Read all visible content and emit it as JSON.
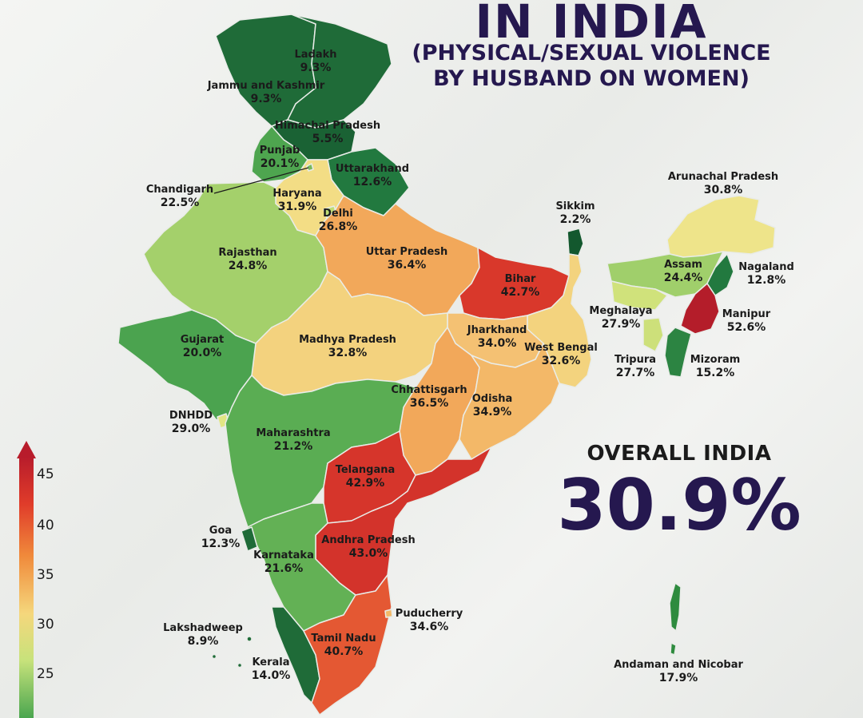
{
  "title": {
    "main": "IN INDIA",
    "sub_line1": "(PHYSICAL/SEXUAL VIOLENCE",
    "sub_line2": "BY HUSBAND ON WOMEN)"
  },
  "overall": {
    "label": "OVERALL INDIA",
    "value": "30.9%"
  },
  "legend": {
    "ticks": [
      "45",
      "40",
      "35",
      "30",
      "25"
    ],
    "min_color": "#2e8b3e",
    "max_color": "#b81c2b"
  },
  "regions": {
    "ladakh": {
      "name": "Ladakh",
      "value": "9.3%",
      "color": "#1f6b38"
    },
    "jk": {
      "name": "Jammu and Kashmir",
      "value": "9.3%",
      "color": "#1f6b38"
    },
    "hp": {
      "name": "Himachal Pradesh",
      "value": "5.5%",
      "color": "#1a6234"
    },
    "punjab": {
      "name": "Punjab",
      "value": "20.1%",
      "color": "#4ea54f"
    },
    "uttarakhand": {
      "name": "Uttarakhand",
      "value": "12.6%",
      "color": "#22793f"
    },
    "chandigarh": {
      "name": "Chandigarh",
      "value": "22.5%",
      "color": "#79b85a"
    },
    "haryana": {
      "name": "Haryana",
      "value": "31.9%",
      "color": "#f3dd85"
    },
    "delhi": {
      "name": "Delhi",
      "value": "26.8%",
      "color": "#bfdc74"
    },
    "rajasthan": {
      "name": "Rajasthan",
      "value": "24.8%",
      "color": "#a4d06b"
    },
    "up": {
      "name": "Uttar Pradesh",
      "value": "36.4%",
      "color": "#f2a85a"
    },
    "bihar": {
      "name": "Bihar",
      "value": "42.7%",
      "color": "#d9382b"
    },
    "sikkim": {
      "name": "Sikkim",
      "value": "2.2%",
      "color": "#13582e"
    },
    "arunachal": {
      "name": "Arunachal Pradesh",
      "value": "30.8%",
      "color": "#eee48a"
    },
    "nagaland": {
      "name": "Nagaland",
      "value": "12.8%",
      "color": "#22793f"
    },
    "assam": {
      "name": "Assam",
      "value": "24.4%",
      "color": "#a0cf6b"
    },
    "manipur": {
      "name": "Manipur",
      "value": "52.6%",
      "color": "#b41d2a"
    },
    "meghalaya": {
      "name": "Meghalaya",
      "value": "27.9%",
      "color": "#d0e27b"
    },
    "tripura": {
      "name": "Tripura",
      "value": "27.7%",
      "color": "#cde07a"
    },
    "mizoram": {
      "name": "Mizoram",
      "value": "15.2%",
      "color": "#2c8442"
    },
    "gujarat": {
      "name": "Gujarat",
      "value": "20.0%",
      "color": "#4ba34f"
    },
    "mp": {
      "name": "Madhya Pradesh",
      "value": "32.8%",
      "color": "#f3d27e"
    },
    "jharkhand": {
      "name": "Jharkhand",
      "value": "34.0%",
      "color": "#f4c173"
    },
    "wb": {
      "name": "West Bengal",
      "value": "32.6%",
      "color": "#f3d37e"
    },
    "chhattisgarh": {
      "name": "Chhattisgarh",
      "value": "36.5%",
      "color": "#f2a85a"
    },
    "odisha": {
      "name": "Odisha",
      "value": "34.9%",
      "color": "#f3b868"
    },
    "dnhdd": {
      "name": "DNHDD",
      "value": "29.0%",
      "color": "#e2e684"
    },
    "maharashtra": {
      "name": "Maharashtra",
      "value": "21.2%",
      "color": "#5aad53"
    },
    "telangana": {
      "name": "Telangana",
      "value": "42.9%",
      "color": "#d6352b"
    },
    "goa": {
      "name": "Goa",
      "value": "12.3%",
      "color": "#1f6b38"
    },
    "ap": {
      "name": "Andhra Pradesh",
      "value": "43.0%",
      "color": "#d3332b"
    },
    "karnataka": {
      "name": "Karnataka",
      "value": "21.6%",
      "color": "#63b155"
    },
    "lakshadweep": {
      "name": "Lakshadweep",
      "value": "8.9%",
      "color": "#1f6b38"
    },
    "tn": {
      "name": "Tamil Nadu",
      "value": "40.7%",
      "color": "#e45833"
    },
    "puducherry": {
      "name": "Puducherry",
      "value": "34.6%",
      "color": "#f3b868"
    },
    "kerala": {
      "name": "Kerala",
      "value": "14.0%",
      "color": "#1f6b38"
    },
    "andaman": {
      "name": "Andaman and Nicobar",
      "value": "17.9%",
      "color": "#2e8b3e"
    }
  }
}
